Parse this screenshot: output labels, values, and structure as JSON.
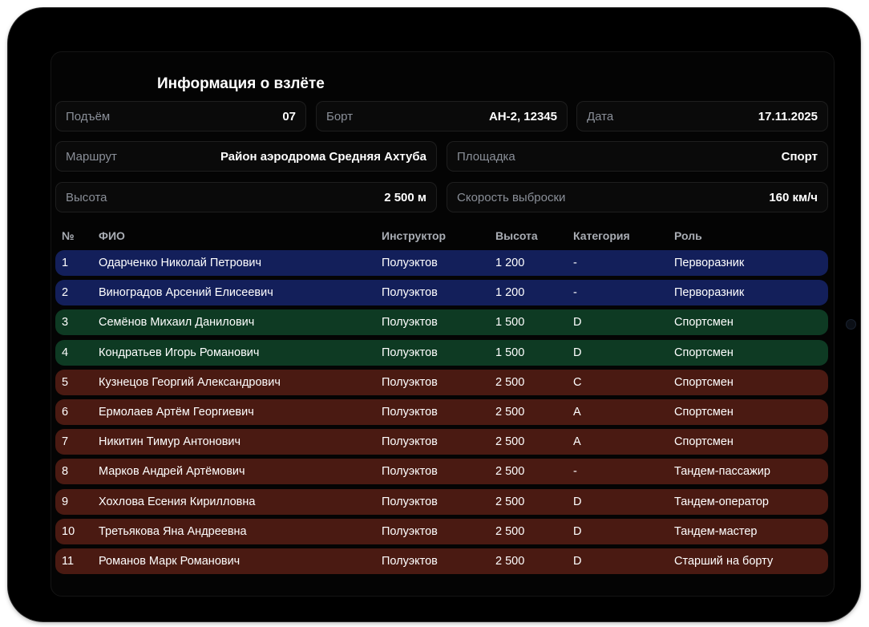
{
  "title": "Информация о взлёте",
  "fields": {
    "lift": {
      "label": "Подъём",
      "value": "07"
    },
    "board": {
      "label": "Борт",
      "value": "АН-2, 12345"
    },
    "date": {
      "label": "Дата",
      "value": "17.11.2025"
    },
    "route": {
      "label": "Маршрут",
      "value": "Район аэродрома Средняя Ахтуба"
    },
    "site": {
      "label": "Площадка",
      "value": "Спорт"
    },
    "altitude": {
      "label": "Высота",
      "value": "2 500 м"
    },
    "speed": {
      "label": "Скорость выброски",
      "value": "160 км/ч"
    }
  },
  "table": {
    "headers": [
      "№",
      "ФИО",
      "Инструктор",
      "Высота",
      "Категория",
      "Роль"
    ],
    "row_colors": {
      "first_jump": "#131f5a",
      "sport_green": "#0e3a23",
      "sport_red": "#4a1a12"
    },
    "rows": [
      {
        "no": "1",
        "name": "Одарченко Николай Петрович",
        "instructor": "Полуэктов",
        "altitude": "1 200",
        "category": "-",
        "role": "Перворазник",
        "color": "#131f5a"
      },
      {
        "no": "2",
        "name": "Виноградов Арсений Елисеевич",
        "instructor": "Полуэктов",
        "altitude": "1 200",
        "category": "-",
        "role": "Перворазник",
        "color": "#131f5a"
      },
      {
        "no": "3",
        "name": "Семёнов Михаил Данилович",
        "instructor": "Полуэктов",
        "altitude": "1 500",
        "category": "D",
        "role": "Спортсмен",
        "color": "#0e3a23"
      },
      {
        "no": "4",
        "name": "Кондратьев Игорь Романович",
        "instructor": "Полуэктов",
        "altitude": "1 500",
        "category": "D",
        "role": "Спортсмен",
        "color": "#0e3a23"
      },
      {
        "no": "5",
        "name": "Кузнецов Георгий Александрович",
        "instructor": "Полуэктов",
        "altitude": "2 500",
        "category": "C",
        "role": "Спортсмен",
        "color": "#4a1a12"
      },
      {
        "no": "6",
        "name": "Ермолаев Артём Георгиевич",
        "instructor": "Полуэктов",
        "altitude": "2 500",
        "category": "A",
        "role": "Спортсмен",
        "color": "#4a1a12"
      },
      {
        "no": "7",
        "name": "Никитин Тимур Антонович",
        "instructor": "Полуэктов",
        "altitude": "2 500",
        "category": "A",
        "role": "Спортсмен",
        "color": "#4a1a12"
      },
      {
        "no": "8",
        "name": "Марков Андрей Артёмович",
        "instructor": "Полуэктов",
        "altitude": "2 500",
        "category": "-",
        "role": "Тандем-пассажир",
        "color": "#4a1a12"
      },
      {
        "no": "9",
        "name": "Хохлова Есения Кирилловна",
        "instructor": "Полуэктов",
        "altitude": "2 500",
        "category": "D",
        "role": "Тандем-оператор",
        "color": "#4a1a12"
      },
      {
        "no": "10",
        "name": "Третьякова Яна Андреевна",
        "instructor": "Полуэктов",
        "altitude": "2 500",
        "category": "D",
        "role": "Тандем-мастер",
        "color": "#4a1a12"
      },
      {
        "no": "11",
        "name": "Романов Марк Романович",
        "instructor": "Полуэктов",
        "altitude": "2 500",
        "category": "D",
        "role": "Старший на борту",
        "color": "#4a1a12"
      }
    ]
  }
}
